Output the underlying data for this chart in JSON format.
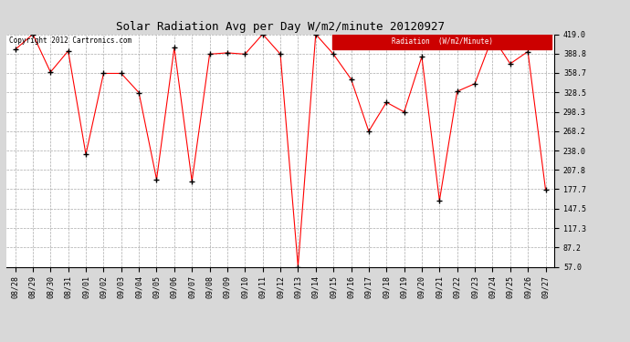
{
  "title": "Solar Radiation Avg per Day W/m2/minute 20120927",
  "copyright": "Copyright 2012 Cartronics.com",
  "legend_label": "Radiation  (W/m2/Minute)",
  "x_labels": [
    "08/28",
    "08/29",
    "08/30",
    "08/31",
    "09/01",
    "09/02",
    "09/03",
    "09/04",
    "09/05",
    "09/06",
    "09/07",
    "09/08",
    "09/09",
    "09/10",
    "09/11",
    "09/12",
    "09/13",
    "09/14",
    "09/15",
    "09/16",
    "09/17",
    "09/18",
    "09/19",
    "09/20",
    "09/21",
    "09/22",
    "09/23",
    "09/24",
    "09/25",
    "09/26",
    "09/27"
  ],
  "y_values": [
    395,
    419,
    360,
    393,
    232,
    358,
    358,
    328,
    193,
    398,
    190,
    388,
    390,
    388,
    419,
    388,
    57,
    419,
    388,
    349,
    268,
    313,
    298,
    384,
    160,
    330,
    342,
    415,
    373,
    392,
    177
  ],
  "y_ticks": [
    57.0,
    87.2,
    117.3,
    147.5,
    177.7,
    207.8,
    238.0,
    268.2,
    298.3,
    328.5,
    358.7,
    388.8,
    419.0
  ],
  "y_min": 57.0,
  "y_max": 419.0,
  "line_color": "red",
  "marker_color": "black",
  "bg_color": "#d8d8d8",
  "plot_bg_color": "#ffffff",
  "grid_color": "#aaaaaa",
  "title_fontsize": 9,
  "tick_fontsize": 6,
  "legend_bg": "#cc0000",
  "legend_fg": "#ffffff"
}
